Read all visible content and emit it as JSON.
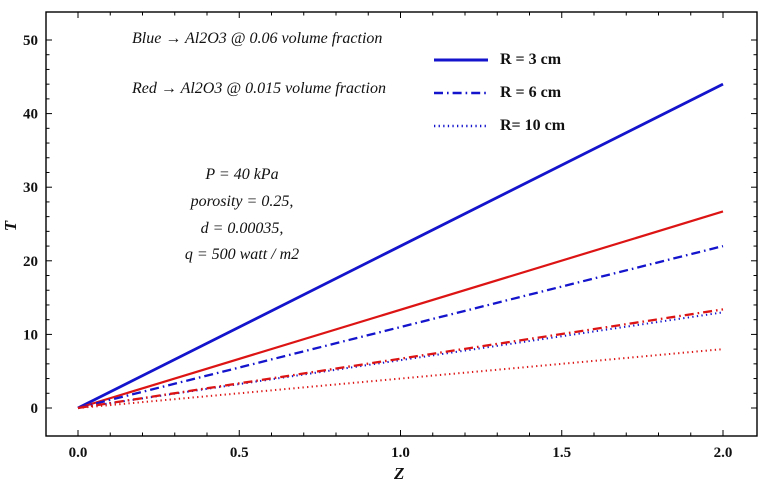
{
  "chart_data": {
    "type": "line",
    "title": "",
    "xlabel": "Z",
    "ylabel": "T",
    "xlim": [
      0,
      2
    ],
    "ylim": [
      0,
      50
    ],
    "x_ticks": [
      0,
      0.5,
      1,
      1.5,
      2
    ],
    "y_ticks": [
      0,
      10,
      20,
      30,
      40,
      50
    ],
    "x_minor_step": 0.1,
    "y_minor_step": 2,
    "grid": false,
    "frame": true,
    "legend_position": "top-right-inside",
    "colors": {
      "blue_series": "#1414CC",
      "red_series": "#DD1414",
      "frame": "#000000"
    },
    "series": [
      {
        "name": "blue-r3-solid",
        "legend_group": "R = 3 cm",
        "color": "#1414CC",
        "style": "solid",
        "width": 2.8,
        "x": [
          0,
          2
        ],
        "y": [
          0,
          44.0
        ]
      },
      {
        "name": "red-r3-solid",
        "legend_group": "R = 3 cm",
        "color": "#DD1414",
        "style": "solid",
        "width": 2.2,
        "x": [
          0,
          2
        ],
        "y": [
          0,
          26.7
        ]
      },
      {
        "name": "blue-r6-dashdot",
        "legend_group": "R = 6 cm",
        "color": "#1414CC",
        "style": "dashdot",
        "width": 2.3,
        "x": [
          0,
          2
        ],
        "y": [
          0,
          22.0
        ]
      },
      {
        "name": "blue-r10-dotted",
        "legend_group": "R= 10 cm",
        "color": "#1414CC",
        "style": "dotted",
        "width": 2.0,
        "x": [
          0,
          2
        ],
        "y": [
          0,
          13.0
        ]
      },
      {
        "name": "red-r6-dashdot",
        "legend_group": "R = 6 cm",
        "color": "#DD1414",
        "style": "dashdot",
        "width": 2.3,
        "x": [
          0,
          2
        ],
        "y": [
          0,
          13.4
        ]
      },
      {
        "name": "red-r10-dotted",
        "legend_group": "R= 10 cm",
        "color": "#DD1414",
        "style": "dotted",
        "width": 2.0,
        "x": [
          0,
          2
        ],
        "y": [
          0,
          8.0
        ]
      }
    ],
    "legend_color": "#1414CC",
    "legend": [
      {
        "label": "R = 3 cm",
        "style": "solid"
      },
      {
        "label": "R = 6 cm",
        "style": "dashdot"
      },
      {
        "label": "R= 10 cm",
        "style": "dotted"
      }
    ],
    "annotations": [
      "Blue →  Al2O3  @  0.06 volume  fraction",
      "Red → Al2O3  @  0.015 volume  fraction",
      "P = 40 kPa",
      "porosity = 0.25,",
      "d = 0.00035,",
      "q = 500 watt / m2"
    ]
  }
}
